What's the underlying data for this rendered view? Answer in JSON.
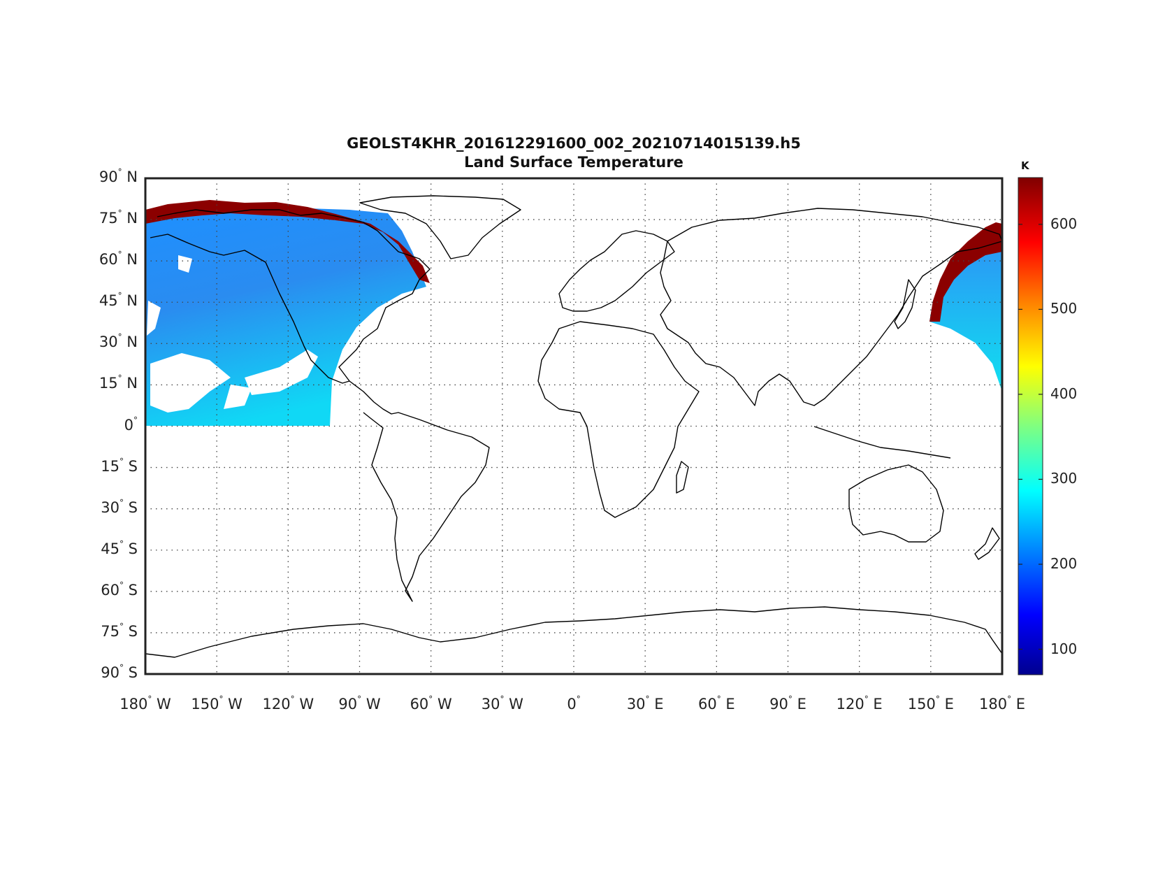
{
  "title": "GEOLST4KHR_201612291600_002_20210714015139.h5",
  "subtitle": "Land Surface Temperature",
  "colorbar": {
    "unit": "K",
    "ticks": [
      "600",
      "500",
      "400",
      "300",
      "200",
      "100"
    ],
    "range": [
      70,
      655
    ],
    "colormap": "jet",
    "colors": [
      "#00008f",
      "#0000ff",
      "#0080ff",
      "#00ffff",
      "#80ff80",
      "#ffff00",
      "#ff8000",
      "#ff0000",
      "#800000"
    ]
  },
  "axes": {
    "lat_ticks": [
      {
        "deg": "90",
        "hem": "N"
      },
      {
        "deg": "75",
        "hem": "N"
      },
      {
        "deg": "60",
        "hem": "N"
      },
      {
        "deg": "45",
        "hem": "N"
      },
      {
        "deg": "30",
        "hem": "N"
      },
      {
        "deg": "15",
        "hem": "N"
      },
      {
        "deg": "0",
        "hem": ""
      },
      {
        "deg": "15",
        "hem": "S"
      },
      {
        "deg": "30",
        "hem": "S"
      },
      {
        "deg": "45",
        "hem": "S"
      },
      {
        "deg": "60",
        "hem": "S"
      },
      {
        "deg": "75",
        "hem": "S"
      },
      {
        "deg": "90",
        "hem": "S"
      }
    ],
    "lon_ticks": [
      {
        "deg": "180",
        "hem": "W"
      },
      {
        "deg": "150",
        "hem": "W"
      },
      {
        "deg": "120",
        "hem": "W"
      },
      {
        "deg": "90",
        "hem": "W"
      },
      {
        "deg": "60",
        "hem": "W"
      },
      {
        "deg": "30",
        "hem": "W"
      },
      {
        "deg": "0",
        "hem": ""
      },
      {
        "deg": "30",
        "hem": "E"
      },
      {
        "deg": "60",
        "hem": "E"
      },
      {
        "deg": "90",
        "hem": "E"
      },
      {
        "deg": "120",
        "hem": "E"
      },
      {
        "deg": "150",
        "hem": "E"
      },
      {
        "deg": "180",
        "hem": "E"
      }
    ],
    "lon_range": [
      -180,
      180
    ],
    "lat_range": [
      -90,
      90
    ],
    "grid": "dotted"
  },
  "map": {
    "projection": "equirectangular",
    "coastlines": true,
    "data_swaths": [
      {
        "region": "western swath (180°W–100°W, 0°–80°N)",
        "dominant_range_K": [
          220,
          300
        ],
        "cloud_gaps": "white"
      },
      {
        "region": "eastern swath (150°E–180°E, 10°N–75°N)",
        "dominant_range_K": [
          240,
          300
        ]
      },
      {
        "region": "swath limb edges",
        "value_K": 650,
        "color": "dark red"
      }
    ]
  }
}
